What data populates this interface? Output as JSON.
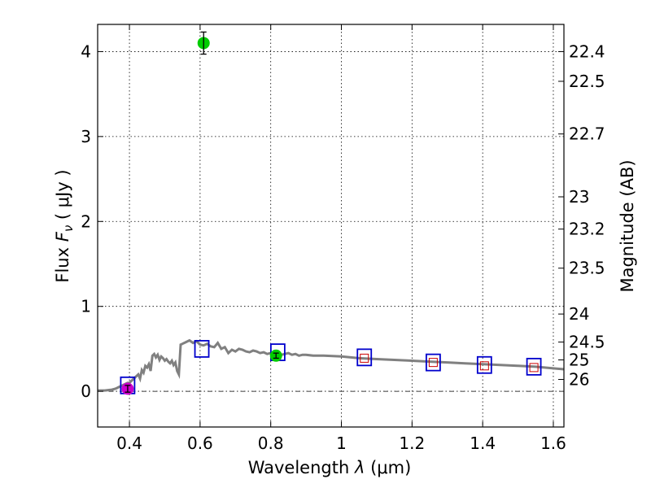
{
  "chart_data": {
    "type": "scatter",
    "xlabel_text": "Wavelength",
    "xlabel_symbol": "λ",
    "xlabel_unit": "(μm)",
    "ylabel_text": "Flux",
    "ylabel_symbol": "F",
    "ylabel_sub": "ν",
    "ylabel_unit": "( μJy )",
    "y2label": "Magnitude (AB)",
    "xlim": [
      0.31,
      1.63
    ],
    "ylim": [
      -0.42,
      4.32
    ],
    "xticks": [
      {
        "value": 0.4,
        "label": "0.4"
      },
      {
        "value": 0.6,
        "label": "0.6"
      },
      {
        "value": 0.8,
        "label": "0.8"
      },
      {
        "value": 1.0,
        "label": "1"
      },
      {
        "value": 1.2,
        "label": "1.2"
      },
      {
        "value": 1.4,
        "label": "1.4"
      },
      {
        "value": 1.6,
        "label": "1.6"
      }
    ],
    "yticks": [
      {
        "value": 0,
        "label": "0"
      },
      {
        "value": 1,
        "label": "1"
      },
      {
        "value": 2,
        "label": "2"
      },
      {
        "value": 3,
        "label": "3"
      },
      {
        "value": 4,
        "label": "4"
      }
    ],
    "mag_ticks": [
      {
        "flux": 4.0,
        "label": "22.4"
      },
      {
        "flux": 3.65,
        "label": "22.5"
      },
      {
        "flux": 3.03,
        "label": "22.7"
      },
      {
        "flux": 2.29,
        "label": "23"
      },
      {
        "flux": 1.91,
        "label": "23.2"
      },
      {
        "flux": 1.45,
        "label": "23.5"
      },
      {
        "flux": 0.91,
        "label": "24"
      },
      {
        "flux": 0.58,
        "label": "24.5"
      },
      {
        "flux": 0.37,
        "label": "25"
      },
      {
        "flux": 0.14,
        "label": "26"
      }
    ],
    "grid": true,
    "model_sed": {
      "color": "#808080",
      "x": [
        0.31,
        0.33,
        0.35,
        0.36,
        0.365,
        0.37,
        0.375,
        0.38,
        0.385,
        0.39,
        0.395,
        0.4,
        0.405,
        0.41,
        0.415,
        0.42,
        0.425,
        0.43,
        0.435,
        0.44,
        0.445,
        0.45,
        0.455,
        0.46,
        0.465,
        0.47,
        0.475,
        0.48,
        0.485,
        0.49,
        0.495,
        0.5,
        0.505,
        0.51,
        0.515,
        0.52,
        0.525,
        0.53,
        0.535,
        0.54,
        0.545,
        0.55,
        0.56,
        0.57,
        0.58,
        0.59,
        0.6,
        0.61,
        0.62,
        0.63,
        0.64,
        0.65,
        0.66,
        0.67,
        0.68,
        0.69,
        0.7,
        0.71,
        0.72,
        0.73,
        0.74,
        0.75,
        0.76,
        0.77,
        0.78,
        0.79,
        0.8,
        0.81,
        0.82,
        0.83,
        0.84,
        0.85,
        0.86,
        0.87,
        0.88,
        0.89,
        0.9,
        0.92,
        0.95,
        1.0,
        1.05,
        1.1,
        1.15,
        1.2,
        1.25,
        1.3,
        1.35,
        1.4,
        1.45,
        1.5,
        1.55,
        1.6,
        1.63
      ],
      "y": [
        0.01,
        0.01,
        0.02,
        0.03,
        0.04,
        0.05,
        0.06,
        0.07,
        0.08,
        0.09,
        0.1,
        0.1,
        0.12,
        0.14,
        0.16,
        0.18,
        0.2,
        0.15,
        0.25,
        0.22,
        0.3,
        0.28,
        0.32,
        0.24,
        0.42,
        0.44,
        0.4,
        0.43,
        0.37,
        0.41,
        0.39,
        0.36,
        0.38,
        0.35,
        0.33,
        0.36,
        0.31,
        0.34,
        0.24,
        0.2,
        0.55,
        0.56,
        0.58,
        0.6,
        0.57,
        0.59,
        0.55,
        0.54,
        0.56,
        0.53,
        0.52,
        0.57,
        0.5,
        0.52,
        0.45,
        0.49,
        0.47,
        0.5,
        0.49,
        0.47,
        0.46,
        0.48,
        0.47,
        0.45,
        0.46,
        0.44,
        0.45,
        0.44,
        0.46,
        0.43,
        0.44,
        0.45,
        0.43,
        0.44,
        0.42,
        0.43,
        0.43,
        0.42,
        0.42,
        0.41,
        0.39,
        0.38,
        0.37,
        0.36,
        0.35,
        0.34,
        0.33,
        0.32,
        0.31,
        0.3,
        0.29,
        0.27,
        0.26
      ]
    },
    "model_photometry": {
      "color": "#0000cc",
      "x": [
        0.395,
        0.605,
        0.82,
        1.065,
        1.26,
        1.405,
        1.545
      ],
      "y": [
        0.07,
        0.5,
        0.46,
        0.4,
        0.34,
        0.31,
        0.29
      ]
    },
    "observed_points": [
      {
        "x": 0.61,
        "y": 4.1,
        "err": 0.13,
        "color": "#00cc00"
      },
      {
        "x": 0.815,
        "y": 0.42,
        "err": 0.03,
        "color": "#00cc00"
      },
      {
        "x": 0.395,
        "y": 0.03,
        "err": 0.04,
        "color": "#cc00cc"
      }
    ],
    "upper_limit_markers": {
      "color": "#cc0000",
      "x": [
        1.065,
        1.26,
        1.405,
        1.545
      ],
      "y": [
        0.39,
        0.34,
        0.3,
        0.28
      ]
    }
  }
}
